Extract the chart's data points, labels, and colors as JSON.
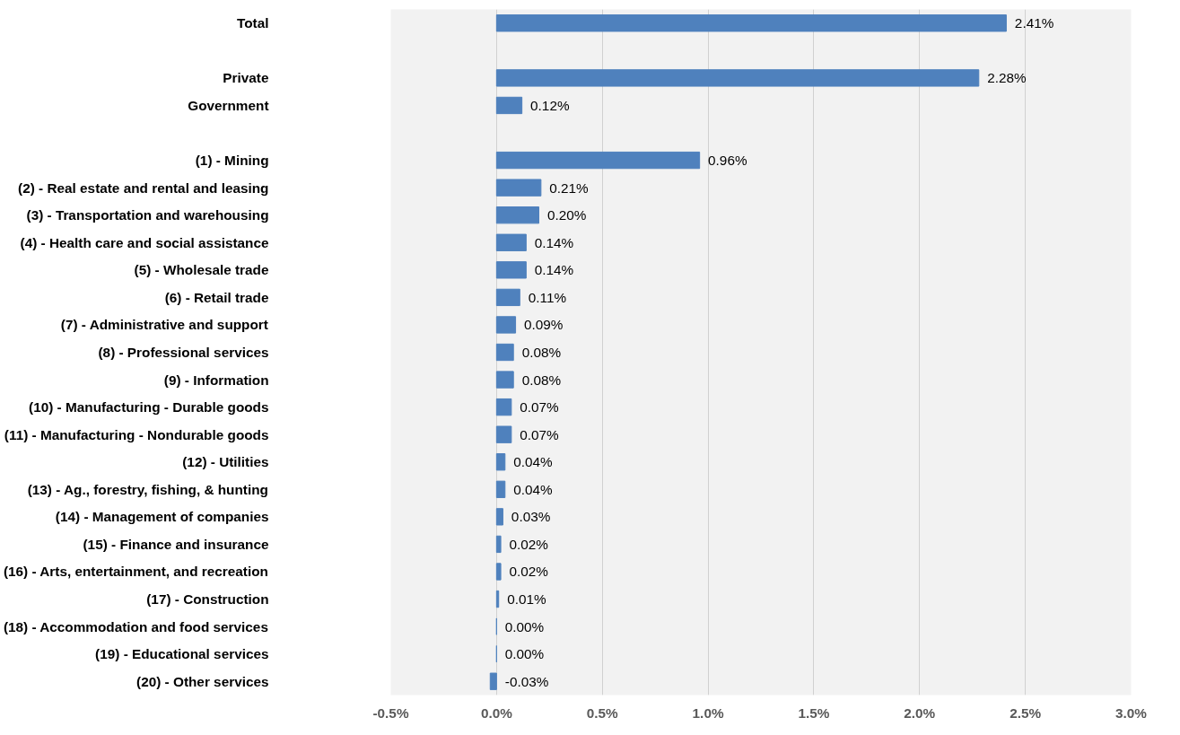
{
  "chart_data": {
    "type": "bar",
    "orientation": "horizontal",
    "categories": [
      "Total",
      null,
      "Private",
      "Government",
      null,
      "(1) - Mining",
      "(2) - Real estate and rental and leasing",
      "(3) - Transportation and warehousing",
      "(4) - Health care and social assistance",
      "(5) - Wholesale trade",
      "(6) - Retail trade",
      "(7) - Administrative and support",
      "(8) - Professional services",
      "(9) - Information",
      "(10) - Manufacturing - Durable goods",
      "(11) - Manufacturing - Nondurable goods",
      "(12) - Utilities",
      "(13) - Ag., forestry, fishing, & hunting",
      "(14) - Management of companies",
      "(15) - Finance and insurance",
      "(16) - Arts, entertainment, and recreation",
      "(17) - Construction",
      "(18) - Accommodation and food services",
      "(19) - Educational services",
      "(20) - Other services"
    ],
    "values": [
      2.41,
      null,
      2.28,
      0.12,
      null,
      0.96,
      0.21,
      0.2,
      0.14,
      0.14,
      0.11,
      0.09,
      0.08,
      0.08,
      0.07,
      0.07,
      0.04,
      0.04,
      0.03,
      0.02,
      0.02,
      0.01,
      0.0,
      0.0,
      -0.03
    ],
    "value_labels": [
      "2.41%",
      null,
      "2.28%",
      "0.12%",
      null,
      "0.96%",
      "0.21%",
      "0.20%",
      "0.14%",
      "0.14%",
      "0.11%",
      "0.09%",
      "0.08%",
      "0.08%",
      "0.07%",
      "0.07%",
      "0.04%",
      "0.04%",
      "0.03%",
      "0.02%",
      "0.02%",
      "0.01%",
      "0.00%",
      "0.00%",
      "-0.03%"
    ],
    "color": "#4f81bd",
    "xlim": [
      -0.5,
      3.0
    ],
    "xticks": [
      {
        "value": -0.5,
        "label": "-0.5%"
      },
      {
        "value": 0,
        "label": "0.0%"
      },
      {
        "value": 0.5,
        "label": "0.5%"
      },
      {
        "value": 1.0,
        "label": "1.0%"
      },
      {
        "value": 1.5,
        "label": "1.5%"
      },
      {
        "value": 2.0,
        "label": "2.0%"
      },
      {
        "value": 2.5,
        "label": "2.5%"
      },
      {
        "value": 3.0,
        "label": "3.0%"
      }
    ],
    "grid": "x"
  }
}
